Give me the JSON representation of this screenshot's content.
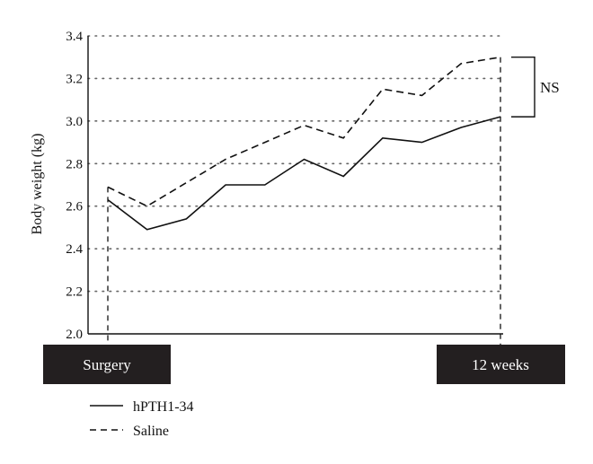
{
  "chart_data": {
    "type": "line",
    "ylabel": "Body weight (kg)",
    "xlabel": "",
    "ylim": [
      2.0,
      3.4
    ],
    "yticks": [
      "2.0",
      "2.2",
      "2.4",
      "2.6",
      "2.8",
      "3.0",
      "3.2",
      "3.4"
    ],
    "grid": true,
    "x": [
      0,
      1,
      2,
      3,
      4,
      5,
      6,
      7,
      8,
      9,
      10
    ],
    "series": [
      {
        "name": "hPTH1-34",
        "line_style": "solid",
        "values": [
          2.63,
          2.49,
          2.54,
          2.7,
          2.7,
          2.82,
          2.74,
          2.92,
          2.9,
          2.97,
          3.02
        ]
      },
      {
        "name": "Saline",
        "line_style": "dashed",
        "values": [
          2.69,
          2.6,
          2.71,
          2.82,
          2.9,
          2.98,
          2.92,
          3.15,
          3.12,
          3.27,
          3.3
        ]
      }
    ],
    "annotations": [
      {
        "label": "NS",
        "type": "significance-bracket",
        "between": [
          "hPTH1-34",
          "Saline"
        ],
        "at": "end"
      }
    ],
    "timepoints": {
      "start": "Surgery",
      "end": "12 weeks"
    },
    "legend_position": "bottom-left"
  },
  "colors": {
    "line": "#111111",
    "grid": "#666666",
    "box_bg": "#231f20",
    "box_text": "#ffffff"
  }
}
